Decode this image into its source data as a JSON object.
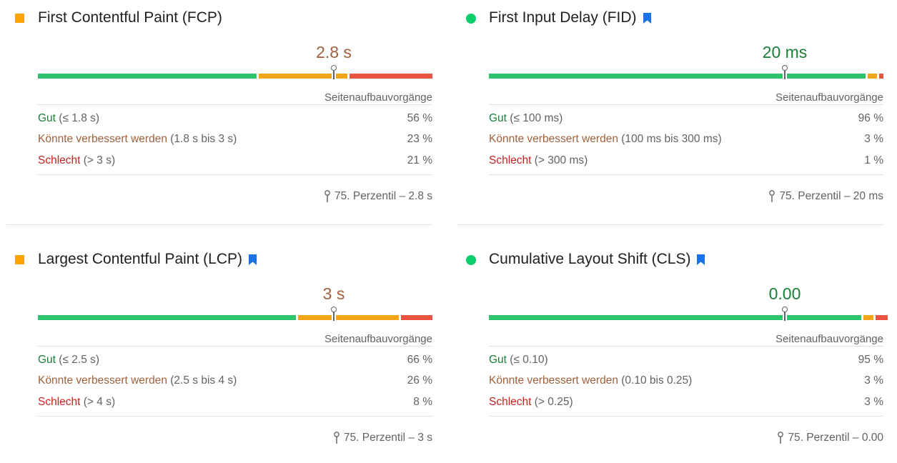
{
  "colors": {
    "good": "#0cce6b",
    "average": "#ffa400",
    "poor": "#ff4e42",
    "bookmark": "#1a73e8"
  },
  "metrics": [
    {
      "title": "First Contentful Paint (FCP)",
      "status": "average",
      "bookmark": false,
      "value": "2.8 s",
      "value_class": "avg",
      "distribution": [
        0.56,
        0.23,
        0.21
      ],
      "marker": 0.75,
      "sublabel": "Seitenaufbauvorgänge",
      "rows": [
        {
          "label": "Gut",
          "range": "(≤ 1.8 s)",
          "pct": "56 %"
        },
        {
          "label": "Könnte verbessert werden",
          "range": "(1.8 s bis 3 s)",
          "pct": "23 %"
        },
        {
          "label": "Schlecht",
          "range": "(> 3 s)",
          "pct": "21 %"
        }
      ],
      "footer": "75. Perzentil – 2.8 s"
    },
    {
      "title": "First Input Delay (FID)",
      "status": "good",
      "bookmark": true,
      "value": "20 ms",
      "value_class": "good",
      "distribution": [
        0.96,
        0.03,
        0.01
      ],
      "marker": 0.75,
      "sublabel": "Seitenaufbauvorgänge",
      "rows": [
        {
          "label": "Gut",
          "range": "(≤ 100 ms)",
          "pct": "96 %"
        },
        {
          "label": "Könnte verbessert werden",
          "range": "(100 ms bis 300 ms)",
          "pct": "3 %"
        },
        {
          "label": "Schlecht",
          "range": "(> 300 ms)",
          "pct": "1 %"
        }
      ],
      "footer": "75. Perzentil – 20 ms"
    },
    {
      "title": "Largest Contentful Paint (LCP)",
      "status": "average",
      "bookmark": true,
      "value": "3 s",
      "value_class": "avg",
      "distribution": [
        0.66,
        0.26,
        0.08
      ],
      "marker": 0.75,
      "sublabel": "Seitenaufbauvorgänge",
      "rows": [
        {
          "label": "Gut",
          "range": "(≤ 2.5 s)",
          "pct": "66 %"
        },
        {
          "label": "Könnte verbessert werden",
          "range": "(2.5 s bis 4 s)",
          "pct": "26 %"
        },
        {
          "label": "Schlecht",
          "range": "(> 4 s)",
          "pct": "8 %"
        }
      ],
      "footer": "75. Perzentil – 3 s"
    },
    {
      "title": "Cumulative Layout Shift (CLS)",
      "status": "good",
      "bookmark": true,
      "value": "0.00",
      "value_class": "good",
      "distribution": [
        0.95,
        0.03,
        0.03
      ],
      "marker": 0.75,
      "sublabel": "Seitenaufbauvorgänge",
      "rows": [
        {
          "label": "Gut",
          "range": "(≤ 0.10)",
          "pct": "95 %"
        },
        {
          "label": "Könnte verbessert werden",
          "range": "(0.10 bis 0.25)",
          "pct": "3 %"
        },
        {
          "label": "Schlecht",
          "range": "(> 0.25)",
          "pct": "3 %"
        }
      ],
      "footer": "75. Perzentil – 0.00"
    }
  ]
}
